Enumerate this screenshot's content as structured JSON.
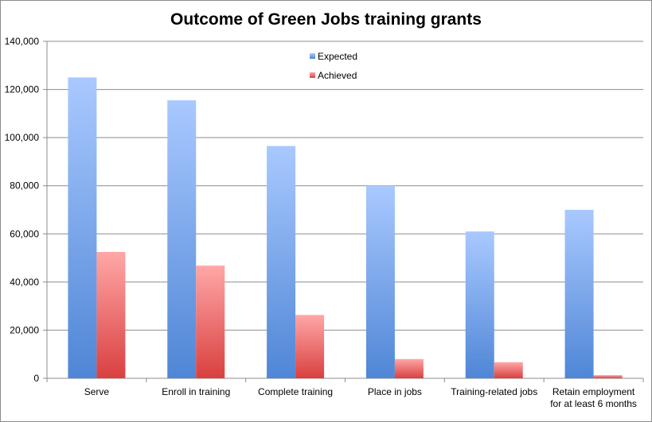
{
  "chart_data": {
    "type": "bar",
    "title": "Outcome of Green Jobs training grants",
    "xlabel": "",
    "ylabel": "",
    "ylim": [
      0,
      140000
    ],
    "yticks": [
      0,
      20000,
      40000,
      60000,
      80000,
      100000,
      120000,
      140000
    ],
    "ytick_labels": [
      "0",
      "20,000",
      "40,000",
      "60,000",
      "80,000",
      "100,000",
      "120,000",
      "140,000"
    ],
    "grid": true,
    "legend_position": "top-center",
    "categories": [
      [
        "Serve"
      ],
      [
        "Enroll in training"
      ],
      [
        "Complete training"
      ],
      [
        "Place in jobs"
      ],
      [
        "Training-related jobs"
      ],
      [
        "Retain employment",
        "for at least 6 months"
      ]
    ],
    "series": [
      {
        "name": "Expected",
        "color": "#4f86d6",
        "color_light": "#a9c9ff",
        "values": [
          125000,
          115500,
          96500,
          80000,
          61000,
          70000
        ]
      },
      {
        "name": "Achieved",
        "color": "#d9403f",
        "color_light": "#ffa7a7",
        "values": [
          52500,
          46800,
          26300,
          8000,
          6700,
          1300
        ]
      }
    ]
  }
}
